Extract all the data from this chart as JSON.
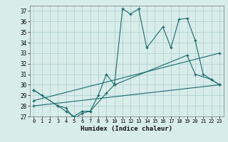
{
  "xlabel": "Humidex (Indice chaleur)",
  "xlim": [
    -0.5,
    23.5
  ],
  "ylim": [
    27,
    37.5
  ],
  "yticks": [
    27,
    28,
    29,
    30,
    31,
    32,
    33,
    34,
    35,
    36,
    37
  ],
  "xticks": [
    0,
    1,
    2,
    3,
    4,
    5,
    6,
    7,
    8,
    9,
    10,
    11,
    12,
    13,
    14,
    15,
    16,
    17,
    18,
    19,
    20,
    21,
    22,
    23
  ],
  "bg_color": "#d8ecea",
  "line_color": "#1a6b6b",
  "grid_color": "#aacfce",
  "lines": [
    {
      "x": [
        0,
        1,
        3,
        4,
        5,
        6,
        7,
        8,
        9,
        10,
        11,
        12,
        13,
        14,
        16,
        17,
        18,
        19,
        20,
        21,
        22,
        23
      ],
      "y": [
        29.5,
        29.0,
        28.0,
        27.5,
        27.0,
        27.5,
        27.5,
        29.0,
        31.0,
        30.0,
        37.2,
        36.7,
        37.2,
        33.5,
        35.5,
        33.5,
        36.2,
        36.3,
        34.2,
        31.0,
        30.5,
        30.0
      ]
    },
    {
      "x": [
        0,
        3,
        4,
        5,
        6,
        7,
        9,
        10,
        19,
        20,
        22,
        23
      ],
      "y": [
        29.5,
        28.0,
        27.8,
        26.8,
        27.3,
        27.5,
        29.2,
        30.0,
        32.8,
        31.0,
        30.5,
        30.0
      ]
    },
    {
      "x": [
        0,
        23
      ],
      "y": [
        28.5,
        33.0
      ]
    },
    {
      "x": [
        0,
        23
      ],
      "y": [
        28.0,
        30.0
      ]
    }
  ]
}
